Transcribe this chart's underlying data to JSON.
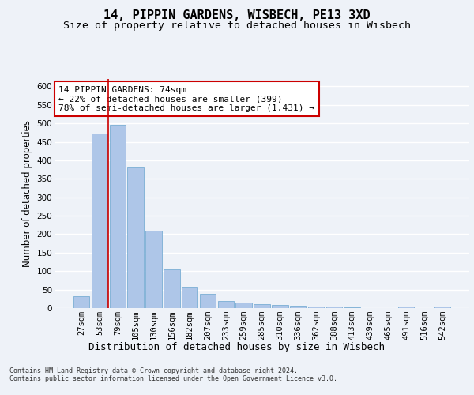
{
  "title1": "14, PIPPIN GARDENS, WISBECH, PE13 3XD",
  "title2": "Size of property relative to detached houses in Wisbech",
  "xlabel": "Distribution of detached houses by size in Wisbech",
  "ylabel": "Number of detached properties",
  "categories": [
    "27sqm",
    "53sqm",
    "79sqm",
    "105sqm",
    "130sqm",
    "156sqm",
    "182sqm",
    "207sqm",
    "233sqm",
    "259sqm",
    "285sqm",
    "310sqm",
    "336sqm",
    "362sqm",
    "388sqm",
    "413sqm",
    "439sqm",
    "465sqm",
    "491sqm",
    "516sqm",
    "542sqm"
  ],
  "values": [
    32,
    473,
    496,
    381,
    210,
    104,
    57,
    38,
    20,
    14,
    11,
    8,
    6,
    4,
    4,
    3,
    0,
    0,
    4,
    0,
    4
  ],
  "bar_color": "#aec6e8",
  "bar_edge_color": "#7aaed4",
  "vline_color": "#cc0000",
  "annotation_text": "14 PIPPIN GARDENS: 74sqm\n← 22% of detached houses are smaller (399)\n78% of semi-detached houses are larger (1,431) →",
  "annotation_box_color": "#ffffff",
  "annotation_box_edge": "#cc0000",
  "footer_text": "Contains HM Land Registry data © Crown copyright and database right 2024.\nContains public sector information licensed under the Open Government Licence v3.0.",
  "ylim": [
    0,
    620
  ],
  "yticks": [
    0,
    50,
    100,
    150,
    200,
    250,
    300,
    350,
    400,
    450,
    500,
    550,
    600
  ],
  "bg_color": "#eef2f8",
  "grid_color": "#ffffff",
  "title1_fontsize": 11,
  "title2_fontsize": 9.5,
  "xlabel_fontsize": 9,
  "ylabel_fontsize": 8.5,
  "annotation_fontsize": 8,
  "tick_fontsize": 7.5,
  "footer_fontsize": 6,
  "vline_x": 1.5
}
